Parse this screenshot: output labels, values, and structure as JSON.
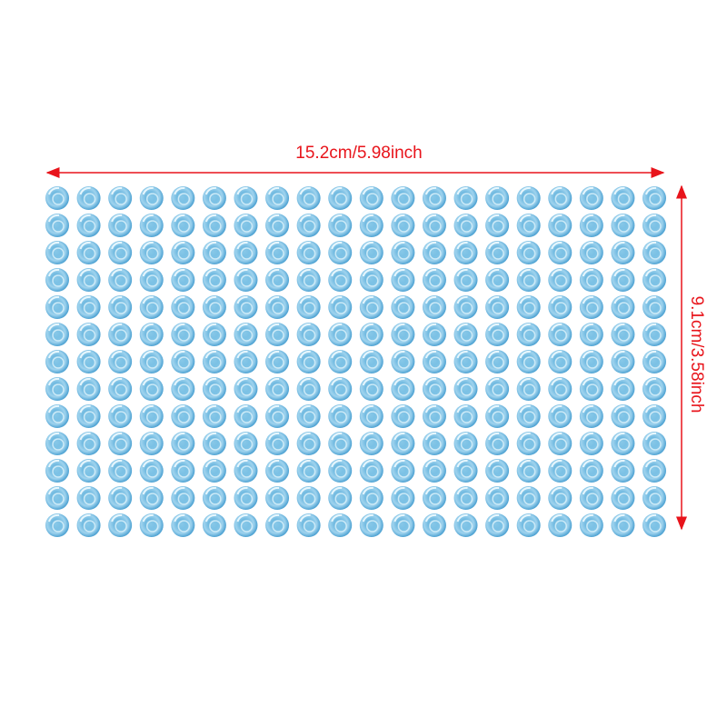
{
  "product": {
    "width_label": "15.2cm/5.98inch",
    "height_label": "9.1cm/3.58inch",
    "rows": 13,
    "columns": 20,
    "gem_color": "#7ec3e6",
    "gem_dark_color": "#4fa3d3",
    "arrow_color": "#e8141b"
  }
}
